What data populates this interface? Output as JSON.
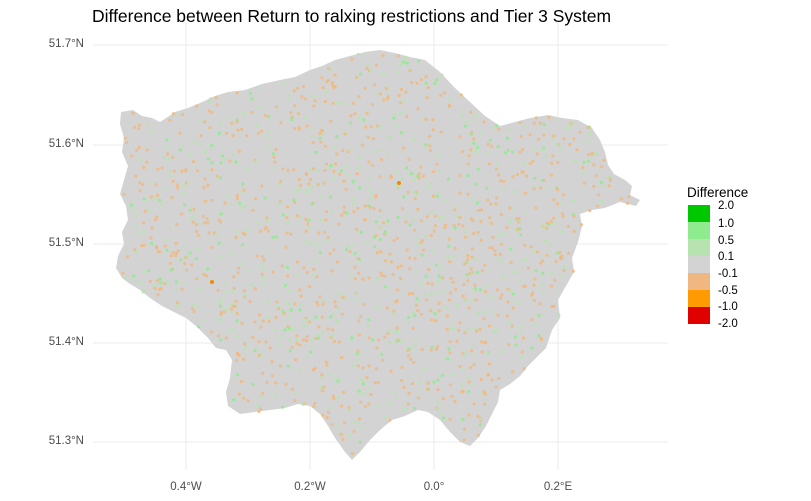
{
  "title": "Difference between Return to ralxing restrictions and Tier 3 System",
  "y_ticks": [
    "51.7°N",
    "51.6°N",
    "51.5°N",
    "51.4°N",
    "51.3°N"
  ],
  "x_ticks": [
    "0.4°W",
    "0.2°W",
    "0.0°",
    "0.2°E"
  ],
  "legend": {
    "title": "Difference",
    "labels": [
      "2.0",
      "1.0",
      "0.5",
      "0.1",
      "-0.1",
      "-0.5",
      "-1.0",
      "-2.0"
    ],
    "colors": [
      "#00c800",
      "#8eeb8e",
      "#b7e3b0",
      "#d3d3d3",
      "#f0b880",
      "#ff9a00",
      "#e00000"
    ]
  },
  "colors": {
    "background": "#ffffff",
    "grid": "#ebebeb",
    "land": "#d3d3d3"
  }
}
